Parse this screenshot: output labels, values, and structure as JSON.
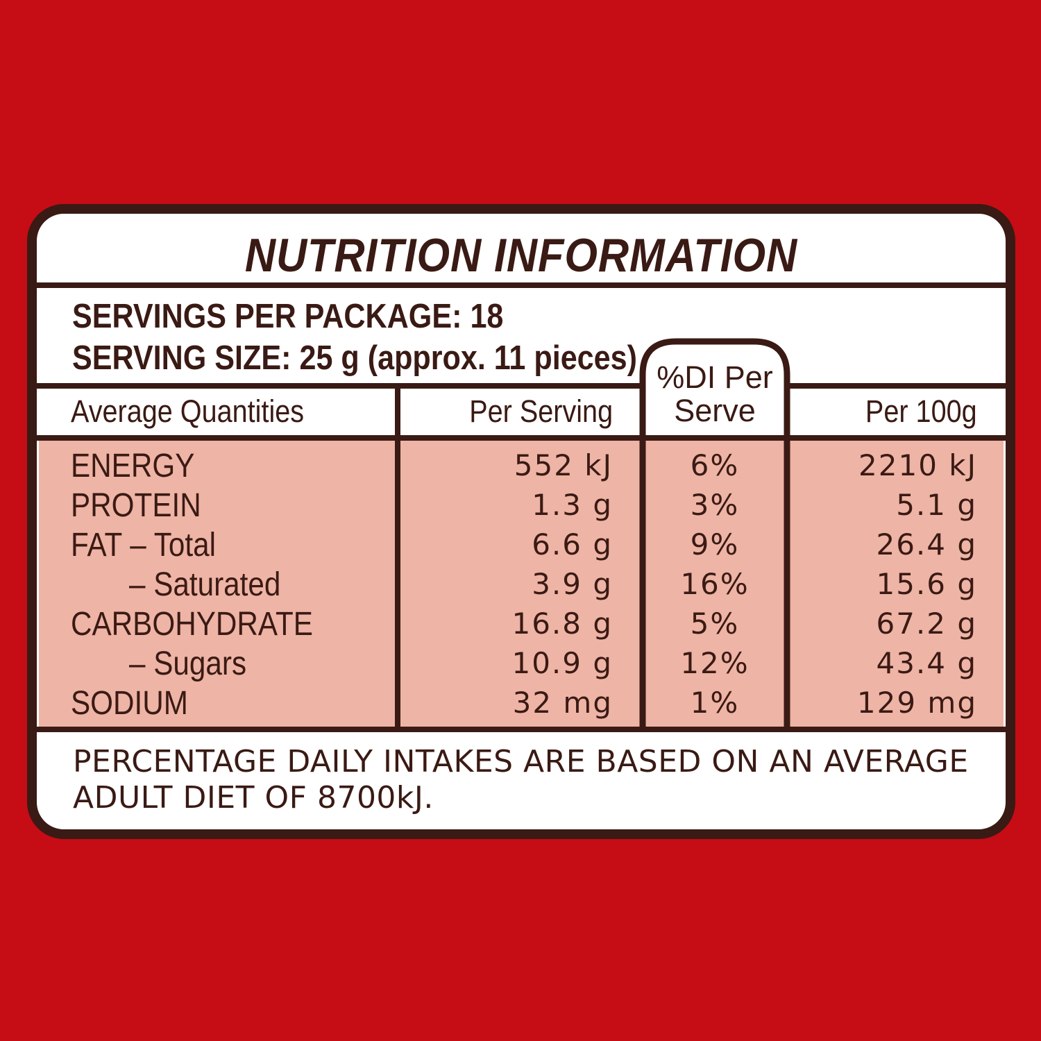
{
  "label": {
    "title": "NUTRITION INFORMATION",
    "servings_per_package": "SERVINGS PER PACKAGE: 18",
    "serving_size": "SERVING SIZE: 25 g (approx. 11 pieces)",
    "columns": {
      "quantities": "Average Quantities",
      "per_serving": "Per Serving",
      "di_line1": "%DI  Per",
      "di_line2": "Serve",
      "per_100g": "Per 100g"
    },
    "rows": [
      {
        "label": "ENERGY",
        "per_serving": "552 kJ",
        "di": "6%",
        "per_100g": "2210 kJ"
      },
      {
        "label": "PROTEIN",
        "per_serving": "1.3 g",
        "di": "3%",
        "per_100g": "5.1 g"
      },
      {
        "label": "FAT – Total",
        "per_serving": "6.6 g",
        "di": "9%",
        "per_100g": "26.4 g"
      },
      {
        "label": "– Saturated",
        "per_serving": "3.9 g",
        "di": "16%",
        "per_100g": "15.6 g"
      },
      {
        "label": "CARBOHYDRATE",
        "per_serving": "16.8 g",
        "di": "5%",
        "per_100g": "67.2 g"
      },
      {
        "label": "– Sugars",
        "per_serving": "10.9 g",
        "di": "12%",
        "per_100g": "43.4 g"
      },
      {
        "label": "SODIUM",
        "per_serving": "32 mg",
        "di": "1%",
        "per_100g": "129 mg"
      }
    ],
    "footnote": "PERCENTAGE DAILY INTAKES ARE BASED ON AN AVERAGE ADULT DIET OF 8700kJ."
  },
  "colors": {
    "background": "#c60c15",
    "ink": "#3a1a14",
    "panel": "#ffffff",
    "table_fill": "#eeb4a5"
  }
}
